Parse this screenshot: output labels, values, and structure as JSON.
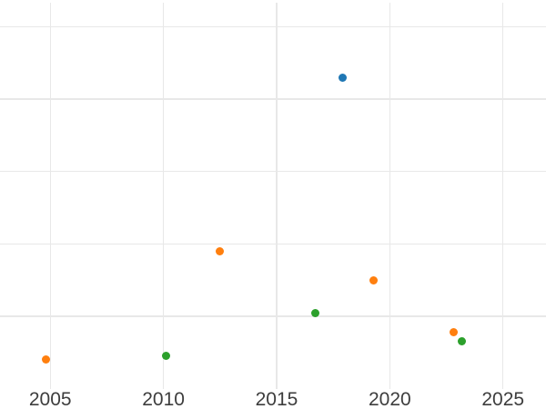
{
  "chart_data": {
    "type": "scatter",
    "title": "",
    "xlabel": "",
    "ylabel": "",
    "x_tick_labels": [
      "2005",
      "2010",
      "2015",
      "2020",
      "2025"
    ],
    "x_tick_values": [
      2005,
      2010,
      2015,
      2020,
      2025
    ],
    "y_tick_labels": [],
    "y_gridline_values": [
      1,
      2,
      3,
      4,
      5
    ],
    "xlim": [
      2002.78,
      2026.9
    ],
    "ylim": [
      0,
      5.33
    ],
    "grid": true,
    "legend": false,
    "axis_note": "no y-axis tick labels visible; y values measured in gridline units above the bottom axis",
    "colors": {
      "background": "#ffffff",
      "grid": "#e8e8e8",
      "tick_label": "#3d3d3d",
      "series_blue": "#1f77b4",
      "series_orange": "#ff7f0e",
      "series_green": "#2ca02c"
    },
    "series": [
      {
        "name": "series-blue",
        "color": "#1f77b4",
        "points": [
          {
            "x": 2017.9,
            "y": 4.3
          }
        ]
      },
      {
        "name": "series-orange",
        "color": "#ff7f0e",
        "points": [
          {
            "x": 2004.8,
            "y": 0.4
          },
          {
            "x": 2012.5,
            "y": 1.89
          },
          {
            "x": 2019.3,
            "y": 1.5
          },
          {
            "x": 2022.8,
            "y": 0.78
          }
        ]
      },
      {
        "name": "series-green",
        "color": "#2ca02c",
        "points": [
          {
            "x": 2010.1,
            "y": 0.45
          },
          {
            "x": 2016.7,
            "y": 1.04
          },
          {
            "x": 2023.2,
            "y": 0.65
          }
        ]
      }
    ]
  }
}
